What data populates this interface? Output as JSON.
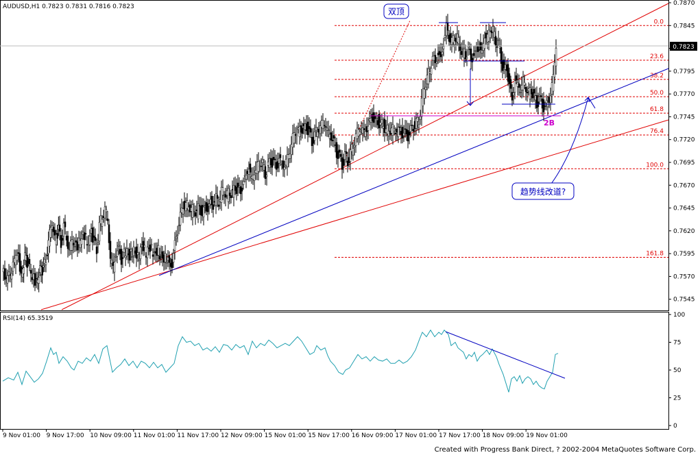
{
  "chart_data": {
    "type": "candlestick",
    "symbol_header": "AUDUSD,H1  0.7823 0.7831 0.7816 0.7823",
    "price_ylim": [
      0.7535,
      0.787
    ],
    "y_ticks": [
      "0.7870",
      "0.7845",
      "0.7820",
      "0.7795",
      "0.7770",
      "0.7745",
      "0.7720",
      "0.7695",
      "0.7670",
      "0.7645",
      "0.7620",
      "0.7595",
      "0.7570",
      "0.7545"
    ],
    "current_price_label": "0.7823",
    "x_labels": [
      "9 Nov 01:00",
      "9 Nov 17:00",
      "10 Nov 09:00",
      "11 Nov 01:00",
      "11 Nov 17:00",
      "12 Nov 09:00",
      "15 Nov 01:00",
      "15 Nov 17:00",
      "16 Nov 09:00",
      "17 Nov 01:00",
      "17 Nov 17:00",
      "18 Nov 09:00",
      "19 Nov 01:00"
    ],
    "close_path": [
      [
        0,
        0.7575
      ],
      [
        8,
        0.7566
      ],
      [
        16,
        0.758
      ],
      [
        22,
        0.7598
      ],
      [
        28,
        0.7572
      ],
      [
        33,
        0.759
      ],
      [
        38,
        0.7583
      ],
      [
        44,
        0.757
      ],
      [
        50,
        0.7564
      ],
      [
        55,
        0.7576
      ],
      [
        60,
        0.7578
      ],
      [
        64,
        0.7588
      ],
      [
        69,
        0.7618
      ],
      [
        73,
        0.763
      ],
      [
        77,
        0.761
      ],
      [
        82,
        0.7621
      ],
      [
        86,
        0.7606
      ],
      [
        90,
        0.7625
      ],
      [
        94,
        0.7612
      ],
      [
        98,
        0.7599
      ],
      [
        102,
        0.761
      ],
      [
        108,
        0.7602
      ],
      [
        114,
        0.761
      ],
      [
        120,
        0.7616
      ],
      [
        124,
        0.7606
      ],
      [
        130,
        0.7618
      ],
      [
        134,
        0.7607
      ],
      [
        138,
        0.76
      ],
      [
        142,
        0.7625
      ],
      [
        146,
        0.7636
      ],
      [
        150,
        0.7644
      ],
      [
        154,
        0.7632
      ],
      [
        158,
        0.759
      ],
      [
        162,
        0.758
      ],
      [
        166,
        0.7595
      ],
      [
        170,
        0.76
      ],
      [
        174,
        0.7588
      ],
      [
        180,
        0.7598
      ],
      [
        186,
        0.7592
      ],
      [
        192,
        0.76
      ],
      [
        198,
        0.759
      ],
      [
        204,
        0.7603
      ],
      [
        210,
        0.7596
      ],
      [
        216,
        0.7602
      ],
      [
        222,
        0.7595
      ],
      [
        228,
        0.7598
      ],
      [
        234,
        0.7588
      ],
      [
        240,
        0.759
      ],
      [
        244,
        0.7584
      ],
      [
        248,
        0.7582
      ],
      [
        252,
        0.7606
      ],
      [
        256,
        0.762
      ],
      [
        260,
        0.7635
      ],
      [
        264,
        0.765
      ],
      [
        268,
        0.7645
      ],
      [
        272,
        0.7652
      ],
      [
        276,
        0.764
      ],
      [
        280,
        0.7646
      ],
      [
        284,
        0.7638
      ],
      [
        288,
        0.765
      ],
      [
        292,
        0.7635
      ],
      [
        296,
        0.7648
      ],
      [
        300,
        0.7642
      ],
      [
        304,
        0.7652
      ],
      [
        308,
        0.7647
      ],
      [
        312,
        0.7656
      ],
      [
        316,
        0.7652
      ],
      [
        320,
        0.7662
      ],
      [
        324,
        0.7665
      ],
      [
        328,
        0.7658
      ],
      [
        332,
        0.7664
      ],
      [
        336,
        0.766
      ],
      [
        340,
        0.7668
      ],
      [
        344,
        0.7665
      ],
      [
        348,
        0.7662
      ],
      [
        352,
        0.7674
      ],
      [
        356,
        0.768
      ],
      [
        360,
        0.769
      ],
      [
        364,
        0.7676
      ],
      [
        368,
        0.7686
      ],
      [
        372,
        0.769
      ],
      [
        376,
        0.7697
      ],
      [
        380,
        0.7692
      ],
      [
        384,
        0.7683
      ],
      [
        388,
        0.769
      ],
      [
        392,
        0.7697
      ],
      [
        396,
        0.7694
      ],
      [
        400,
        0.769
      ],
      [
        404,
        0.7698
      ],
      [
        408,
        0.7693
      ],
      [
        412,
        0.7691
      ],
      [
        416,
        0.7701
      ],
      [
        420,
        0.7708
      ],
      [
        424,
        0.7722
      ],
      [
        428,
        0.773
      ],
      [
        432,
        0.7727
      ],
      [
        436,
        0.7734
      ],
      [
        440,
        0.7729
      ],
      [
        444,
        0.7735
      ],
      [
        448,
        0.7727
      ],
      [
        452,
        0.7717
      ],
      [
        456,
        0.7726
      ],
      [
        460,
        0.773
      ],
      [
        464,
        0.7735
      ],
      [
        468,
        0.774
      ],
      [
        472,
        0.7736
      ],
      [
        476,
        0.7727
      ],
      [
        480,
        0.7724
      ],
      [
        484,
        0.7716
      ],
      [
        488,
        0.7706
      ],
      [
        492,
        0.77
      ],
      [
        496,
        0.7693
      ],
      [
        500,
        0.7701
      ],
      [
        504,
        0.7696
      ],
      [
        508,
        0.7705
      ],
      [
        512,
        0.7713
      ],
      [
        516,
        0.7725
      ],
      [
        520,
        0.7731
      ],
      [
        524,
        0.7733
      ],
      [
        528,
        0.7728
      ],
      [
        532,
        0.7732
      ],
      [
        536,
        0.7738
      ],
      [
        540,
        0.7746
      ],
      [
        544,
        0.7737
      ],
      [
        548,
        0.7742
      ],
      [
        552,
        0.7733
      ],
      [
        556,
        0.774
      ],
      [
        560,
        0.7727
      ],
      [
        564,
        0.7733
      ],
      [
        568,
        0.773
      ],
      [
        572,
        0.7733
      ],
      [
        576,
        0.7728
      ],
      [
        580,
        0.7732
      ],
      [
        584,
        0.7724
      ],
      [
        588,
        0.7728
      ],
      [
        592,
        0.7723
      ],
      [
        596,
        0.773
      ],
      [
        600,
        0.7735
      ],
      [
        604,
        0.7737
      ],
      [
        608,
        0.7742
      ],
      [
        612,
        0.776
      ],
      [
        616,
        0.778
      ],
      [
        620,
        0.7787
      ],
      [
        624,
        0.7797
      ],
      [
        628,
        0.781
      ],
      [
        632,
        0.7804
      ],
      [
        636,
        0.7814
      ],
      [
        640,
        0.7808
      ],
      [
        644,
        0.7826
      ],
      [
        648,
        0.7843
      ],
      [
        652,
        0.7833
      ],
      [
        656,
        0.7826
      ],
      [
        660,
        0.7834
      ],
      [
        664,
        0.783
      ],
      [
        668,
        0.7823
      ],
      [
        672,
        0.7815
      ],
      [
        676,
        0.7812
      ],
      [
        680,
        0.782
      ],
      [
        684,
        0.7807
      ],
      [
        688,
        0.7812
      ],
      [
        692,
        0.7816
      ],
      [
        696,
        0.7821
      ],
      [
        700,
        0.7814
      ],
      [
        704,
        0.7836
      ],
      [
        708,
        0.783
      ],
      [
        712,
        0.7844
      ],
      [
        716,
        0.7838
      ],
      [
        720,
        0.7829
      ],
      [
        724,
        0.7824
      ],
      [
        728,
        0.7808
      ],
      [
        732,
        0.7795
      ],
      [
        736,
        0.7798
      ],
      [
        740,
        0.778
      ],
      [
        744,
        0.7763
      ],
      [
        748,
        0.7786
      ],
      [
        752,
        0.778
      ],
      [
        756,
        0.7776
      ],
      [
        760,
        0.7784
      ],
      [
        764,
        0.7778
      ],
      [
        768,
        0.777
      ],
      [
        772,
        0.7776
      ],
      [
        776,
        0.7765
      ],
      [
        780,
        0.776
      ],
      [
        784,
        0.7764
      ],
      [
        788,
        0.7758
      ],
      [
        792,
        0.7754
      ],
      [
        796,
        0.7762
      ],
      [
        800,
        0.7768
      ],
      [
        804,
        0.779
      ],
      [
        808,
        0.7823
      ]
    ],
    "fib_levels": [
      {
        "label": "0.0",
        "price": 0.7845
      },
      {
        "label": "23.6",
        "price": 0.7807
      },
      {
        "label": "38.2",
        "price": 0.7786
      },
      {
        "label": "50.0",
        "price": 0.7767
      },
      {
        "label": "61.8",
        "price": 0.7749
      },
      {
        "label": "76.4",
        "price": 0.7725
      },
      {
        "label": "100.0",
        "price": 0.7688
      },
      {
        "label": "161.8",
        "price": 0.7591
      }
    ],
    "annotations": {
      "double_top": "双顶",
      "channel_question": "趋势线改道?",
      "pattern_2b": "2B"
    },
    "rsi": {
      "label": "RSI(14) 65.3519",
      "ylim": [
        0,
        100
      ],
      "ticks": [
        "100",
        "75",
        "50",
        "25",
        "0"
      ],
      "path": [
        [
          0,
          40
        ],
        [
          8,
          43
        ],
        [
          16,
          41
        ],
        [
          22,
          48
        ],
        [
          28,
          37
        ],
        [
          34,
          49
        ],
        [
          40,
          44
        ],
        [
          46,
          39
        ],
        [
          52,
          42
        ],
        [
          58,
          47
        ],
        [
          64,
          58
        ],
        [
          70,
          70
        ],
        [
          74,
          64
        ],
        [
          78,
          66
        ],
        [
          82,
          56
        ],
        [
          88,
          62
        ],
        [
          94,
          58
        ],
        [
          100,
          52
        ],
        [
          104,
          50
        ],
        [
          110,
          58
        ],
        [
          116,
          56
        ],
        [
          122,
          61
        ],
        [
          128,
          58
        ],
        [
          134,
          64
        ],
        [
          140,
          56
        ],
        [
          146,
          69
        ],
        [
          152,
          72
        ],
        [
          156,
          60
        ],
        [
          160,
          48
        ],
        [
          166,
          52
        ],
        [
          172,
          55
        ],
        [
          178,
          60
        ],
        [
          184,
          54
        ],
        [
          190,
          58
        ],
        [
          196,
          52
        ],
        [
          202,
          58
        ],
        [
          208,
          56
        ],
        [
          214,
          52
        ],
        [
          220,
          57
        ],
        [
          226,
          52
        ],
        [
          232,
          55
        ],
        [
          238,
          48
        ],
        [
          244,
          52
        ],
        [
          250,
          56
        ],
        [
          256,
          72
        ],
        [
          262,
          80
        ],
        [
          268,
          75
        ],
        [
          274,
          76
        ],
        [
          280,
          72
        ],
        [
          286,
          74
        ],
        [
          292,
          68
        ],
        [
          298,
          70
        ],
        [
          304,
          67
        ],
        [
          310,
          71
        ],
        [
          316,
          66
        ],
        [
          322,
          73
        ],
        [
          328,
          72
        ],
        [
          334,
          68
        ],
        [
          340,
          73
        ],
        [
          346,
          70
        ],
        [
          352,
          72
        ],
        [
          358,
          64
        ],
        [
          364,
          76
        ],
        [
          370,
          70
        ],
        [
          376,
          74
        ],
        [
          382,
          72
        ],
        [
          388,
          77
        ],
        [
          394,
          74
        ],
        [
          400,
          70
        ],
        [
          406,
          72
        ],
        [
          412,
          74
        ],
        [
          418,
          72
        ],
        [
          424,
          76
        ],
        [
          430,
          80
        ],
        [
          436,
          76
        ],
        [
          442,
          70
        ],
        [
          448,
          64
        ],
        [
          454,
          66
        ],
        [
          458,
          72
        ],
        [
          464,
          68
        ],
        [
          470,
          70
        ],
        [
          474,
          63
        ],
        [
          478,
          58
        ],
        [
          484,
          54
        ],
        [
          490,
          48
        ],
        [
          496,
          46
        ],
        [
          500,
          50
        ],
        [
          506,
          52
        ],
        [
          512,
          58
        ],
        [
          518,
          64
        ],
        [
          524,
          60
        ],
        [
          530,
          62
        ],
        [
          536,
          58
        ],
        [
          542,
          62
        ],
        [
          548,
          59
        ],
        [
          554,
          58
        ],
        [
          560,
          60
        ],
        [
          566,
          56
        ],
        [
          572,
          56
        ],
        [
          578,
          59
        ],
        [
          584,
          56
        ],
        [
          590,
          58
        ],
        [
          596,
          62
        ],
        [
          602,
          68
        ],
        [
          608,
          78
        ],
        [
          612,
          84
        ],
        [
          618,
          80
        ],
        [
          624,
          86
        ],
        [
          630,
          80
        ],
        [
          636,
          84
        ],
        [
          640,
          82
        ],
        [
          644,
          86
        ],
        [
          650,
          82
        ],
        [
          654,
          72
        ],
        [
          660,
          75
        ],
        [
          664,
          70
        ],
        [
          668,
          68
        ],
        [
          672,
          66
        ],
        [
          676,
          60
        ],
        [
          680,
          64
        ],
        [
          684,
          62
        ],
        [
          688,
          66
        ],
        [
          692,
          58
        ],
        [
          696,
          62
        ],
        [
          700,
          64
        ],
        [
          706,
          68
        ],
        [
          710,
          64
        ],
        [
          714,
          69
        ],
        [
          720,
          62
        ],
        [
          724,
          55
        ],
        [
          730,
          46
        ],
        [
          734,
          38
        ],
        [
          738,
          30
        ],
        [
          742,
          42
        ],
        [
          746,
          44
        ],
        [
          750,
          40
        ],
        [
          754,
          45
        ],
        [
          758,
          38
        ],
        [
          762,
          42
        ],
        [
          766,
          44
        ],
        [
          770,
          42
        ],
        [
          774,
          37
        ],
        [
          778,
          40
        ],
        [
          782,
          36
        ],
        [
          786,
          34
        ],
        [
          790,
          33
        ],
        [
          794,
          40
        ],
        [
          798,
          44
        ],
        [
          802,
          48
        ],
        [
          806,
          64
        ],
        [
          810,
          65
        ]
      ]
    }
  },
  "footer_text": "Created with Progress Bank Direct, ? 2002-2004 MetaQuotes Software Corp."
}
